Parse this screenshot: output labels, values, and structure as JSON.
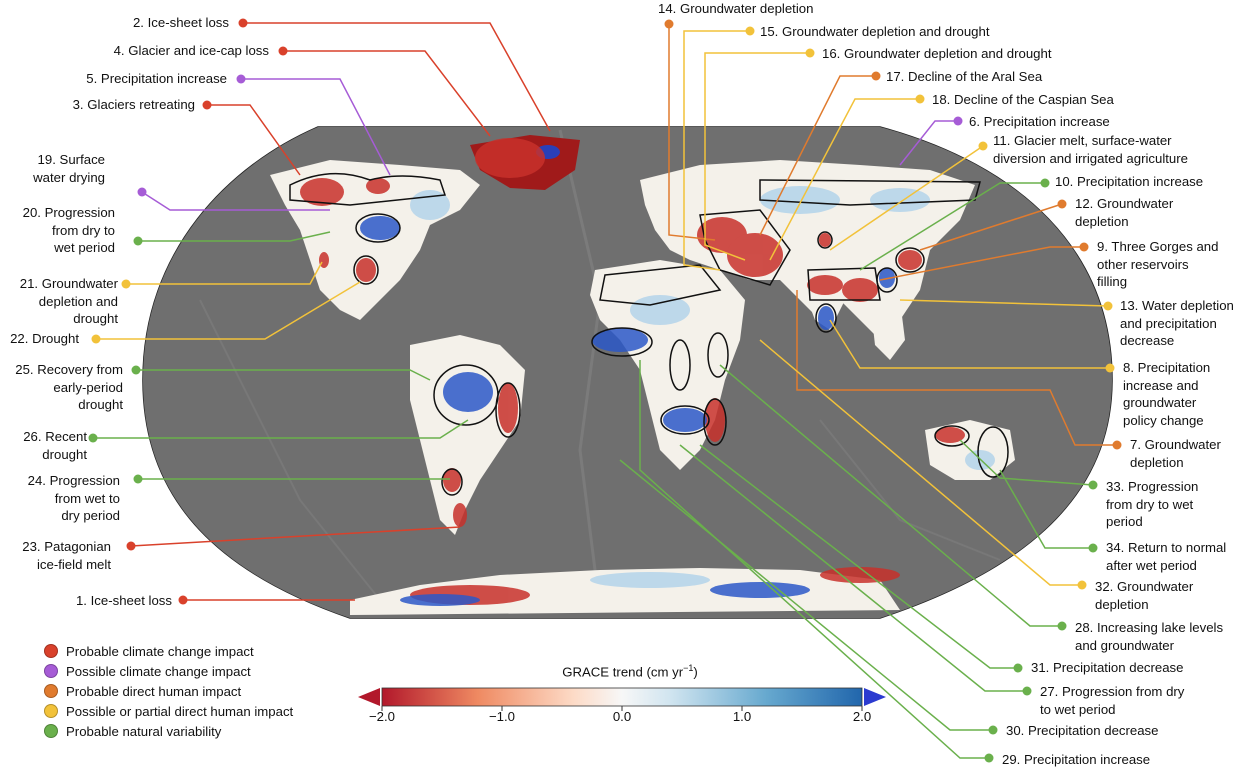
{
  "colorbar": {
    "title": "GRACE trend (cm yr",
    "unit_superscript": "−1",
    "title_close": ")",
    "ticks": [
      "−2.0",
      "−1.0",
      "0.0",
      "1.0",
      "2.0"
    ],
    "range": [
      -2.0,
      2.0
    ],
    "colors": [
      "#b2182b",
      "#ef8a62",
      "#fddbc7",
      "#f7f7f7",
      "#d1e5f0",
      "#67a9cf",
      "#2166ac"
    ]
  },
  "categories": {
    "climate": {
      "label": "Probable climate change impact",
      "color": "#d9412b"
    },
    "possible_climate": {
      "label": "Possible climate change impact",
      "color": "#a65cd6"
    },
    "human": {
      "label": "Probable direct human impact",
      "color": "#e07b2e"
    },
    "partial_human": {
      "label": "Possible or partial direct human impact",
      "color": "#f2c23a"
    },
    "natural": {
      "label": "Probable natural variability",
      "color": "#6ab04c"
    }
  },
  "legend_order": [
    "climate",
    "possible_climate",
    "human",
    "partial_human",
    "natural"
  ],
  "labels": {
    "l1": "1. Ice-sheet loss",
    "l2": "2. Ice-sheet loss",
    "l3": "3. Glaciers retreating",
    "l4": "4. Glacier and ice-cap loss",
    "l5": "5. Precipitation increase",
    "l6": "6. Precipitation increase",
    "l7a": "7. Groundwater",
    "l7b": "depletion",
    "l8a": "8. Precipitation",
    "l8b": "increase and",
    "l8c": "groundwater",
    "l8d": "policy change",
    "l9a": "9. Three Gorges and",
    "l9b": "other reservoirs",
    "l9c": "filling",
    "l10": "10. Precipitation increase",
    "l11a": "11. Glacier melt, surface-water",
    "l11b": "diversion and irrigated agriculture",
    "l12a": "12. Groundwater",
    "l12b": "depletion",
    "l13a": "13. Water depletion",
    "l13b": "and precipitation",
    "l13c": "decrease",
    "l14": "14. Groundwater depletion",
    "l15": "15. Groundwater depletion and drought",
    "l16": "16. Groundwater depletion and drought",
    "l17": "17. Decline of the Aral Sea",
    "l18": "18. Decline of the Caspian Sea",
    "l19a": "19. Surface",
    "l19b": "water drying",
    "l20a": "20. Progression",
    "l20b": "from dry to",
    "l20c": "wet period",
    "l21a": "21. Groundwater",
    "l21b": "depletion and",
    "l21c": "drought",
    "l22": "22. Drought",
    "l23a": "23. Patagonian",
    "l23b": "ice-field melt",
    "l24a": "24. Progression",
    "l24b": "from wet to",
    "l24c": "dry period",
    "l25a": "25. Recovery from",
    "l25b": "early-period",
    "l25c": "drought",
    "l26a": "26. Recent",
    "l26b": "drought",
    "l27a": "27. Progression from dry",
    "l27b": "to wet period",
    "l28a": "28. Increasing lake levels",
    "l28b": "and groundwater",
    "l29": "29. Precipitation increase",
    "l30": "30. Precipitation decrease",
    "l31": "31. Precipitation decrease",
    "l32a": "32. Groundwater",
    "l32b": "depletion",
    "l33a": "33. Progression",
    "l33b": "from dry to wet",
    "l33c": "period",
    "l34a": "34. Return to normal",
    "l34b": "after wet period"
  }
}
